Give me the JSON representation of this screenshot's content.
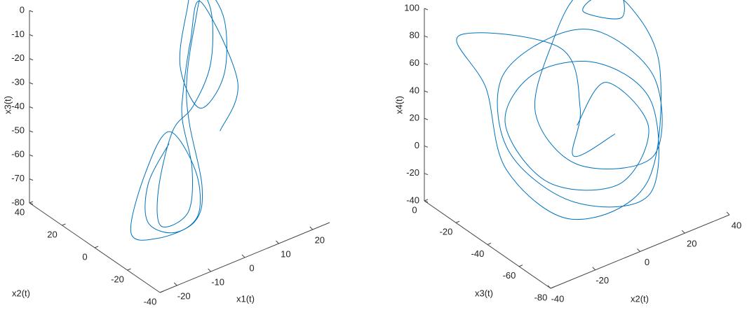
{
  "chart_data": [
    {
      "type": "line3d",
      "xlabel": "x1(t)",
      "ylabel": "x2(t)",
      "zlabel": "x3(t)",
      "xlim": [
        -25,
        25
      ],
      "ylim": [
        -40,
        40
      ],
      "zlim": [
        -80,
        0
      ],
      "xticks": [
        -20,
        -10,
        0,
        10,
        20
      ],
      "yticks": [
        -40,
        -20,
        0,
        20,
        40
      ],
      "zticks": [
        -80,
        -70,
        -60,
        -50,
        -40,
        -30,
        -20,
        -10,
        0
      ],
      "color": "#0072bd",
      "x": [
        -6,
        -14,
        -18,
        -14,
        -6,
        -2,
        -6,
        -14,
        -22,
        -20,
        -10,
        -2,
        0,
        4,
        10,
        16,
        18,
        14,
        6,
        4,
        10,
        14,
        16,
        12,
        4,
        -4,
        -12,
        -16,
        -10,
        -4,
        -2,
        2,
        8,
        14,
        20,
        10
      ],
      "y": [
        -6,
        -10,
        -18,
        -26,
        -24,
        -14,
        -6,
        -8,
        -16,
        -28,
        -30,
        -18,
        -6,
        4,
        12,
        18,
        10,
        2,
        0,
        8,
        16,
        20,
        14,
        6,
        0,
        -4,
        -12,
        -22,
        -26,
        -16,
        -6,
        2,
        10,
        16,
        6,
        -4
      ],
      "z": [
        -45,
        -55,
        -65,
        -68,
        -66,
        -55,
        -40,
        -52,
        -68,
        -66,
        -64,
        -60,
        -40,
        -30,
        -15,
        -5,
        -15,
        -32,
        -40,
        -25,
        -8,
        -2,
        -12,
        -28,
        -38,
        -42,
        -58,
        -66,
        -62,
        -52,
        -38,
        -32,
        -18,
        -8,
        -40,
        -50
      ]
    },
    {
      "type": "line3d",
      "xlabel": "x2(t)",
      "ylabel": "x3(t)",
      "zlabel": "x4(t)",
      "xlim": [
        -40,
        40
      ],
      "ylim": [
        -80,
        0
      ],
      "zlim": [
        -40,
        100
      ],
      "xticks": [
        -40,
        -20,
        0,
        20,
        40
      ],
      "yticks": [
        -80,
        -60,
        -40,
        -20,
        0
      ],
      "zticks": [
        -40,
        -20,
        0,
        20,
        40,
        60,
        80,
        100
      ],
      "color": "#0072bd",
      "x": [
        0,
        20,
        25,
        5,
        -20,
        -25,
        -5,
        20,
        30,
        15,
        -15,
        -30,
        -20,
        5,
        25,
        35,
        20,
        -10,
        -15,
        0,
        15,
        25,
        20,
        10,
        18,
        30,
        30,
        10,
        -20,
        -35,
        -30,
        -30,
        10,
        5,
        -5,
        10
      ],
      "y": [
        -40,
        -30,
        -50,
        -60,
        -50,
        -30,
        -20,
        -25,
        -45,
        -65,
        -60,
        -40,
        -20,
        -15,
        -20,
        -40,
        -60,
        -55,
        -35,
        -25,
        -20,
        -30,
        -40,
        -30,
        -28,
        -30,
        -50,
        -70,
        -65,
        -45,
        -25,
        -8,
        -15,
        -35,
        -45,
        -50
      ],
      "z": [
        20,
        30,
        10,
        -10,
        0,
        30,
        45,
        40,
        20,
        -20,
        -10,
        20,
        50,
        60,
        55,
        30,
        0,
        10,
        35,
        70,
        90,
        95,
        85,
        88,
        92,
        80,
        50,
        -5,
        -15,
        15,
        55,
        80,
        50,
        25,
        5,
        15
      ]
    }
  ]
}
